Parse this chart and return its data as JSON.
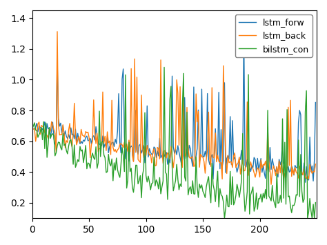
{
  "color_forw": "#1f77b4",
  "color_back": "#ff7f0e",
  "color_bilstm": "#2ca02c",
  "label_forw": "lstm_forw",
  "label_back": "lstm_back",
  "label_bilstm": "bilstm_con",
  "n": 250,
  "seed_forw": 10,
  "seed_back": 20,
  "seed_bilstm": 55,
  "xlim": [
    0,
    250
  ],
  "ylim": [
    0.1,
    1.45
  ],
  "yticks": [
    0.2,
    0.4,
    0.6,
    0.8,
    1.0,
    1.2,
    1.4
  ],
  "xticks": [
    0,
    50,
    100,
    150,
    200
  ],
  "linewidth": 1.0,
  "legend_loc": "upper right",
  "bg_color": "#ffffff"
}
